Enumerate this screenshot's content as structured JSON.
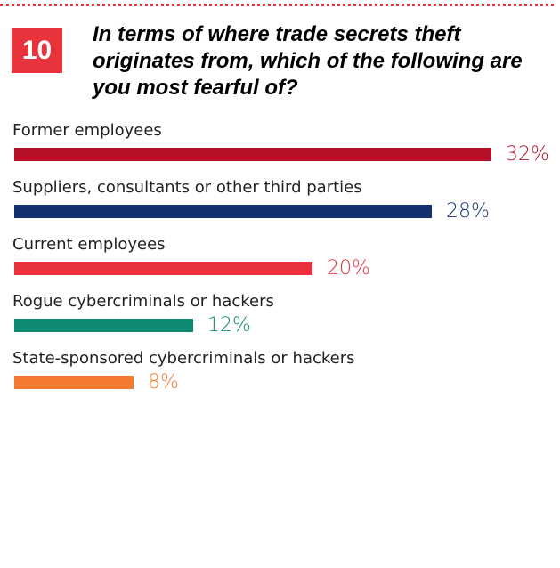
{
  "question": {
    "number": "10",
    "text": "In terms of where trade secrets theft originates from, which of the following are you most fearful of?"
  },
  "chart_data": {
    "type": "bar",
    "orientation": "horizontal",
    "categories": [
      "Former employees",
      "Suppliers, consultants or other third parties",
      "Current employees",
      "Rogue cybercriminals or hackers",
      "State-sponsored cybercriminals or hackers"
    ],
    "values": [
      32,
      28,
      20,
      12,
      8
    ],
    "value_labels": [
      "32%",
      "28%",
      "20%",
      "12%",
      "8%"
    ],
    "colors": [
      "#b5122a",
      "#14306e",
      "#e8323c",
      "#0e8a72",
      "#f47a31"
    ],
    "unit": "%",
    "xlim": [
      0,
      32
    ],
    "title": "",
    "xlabel": "",
    "ylabel": "",
    "grid": false,
    "legend": "none"
  }
}
